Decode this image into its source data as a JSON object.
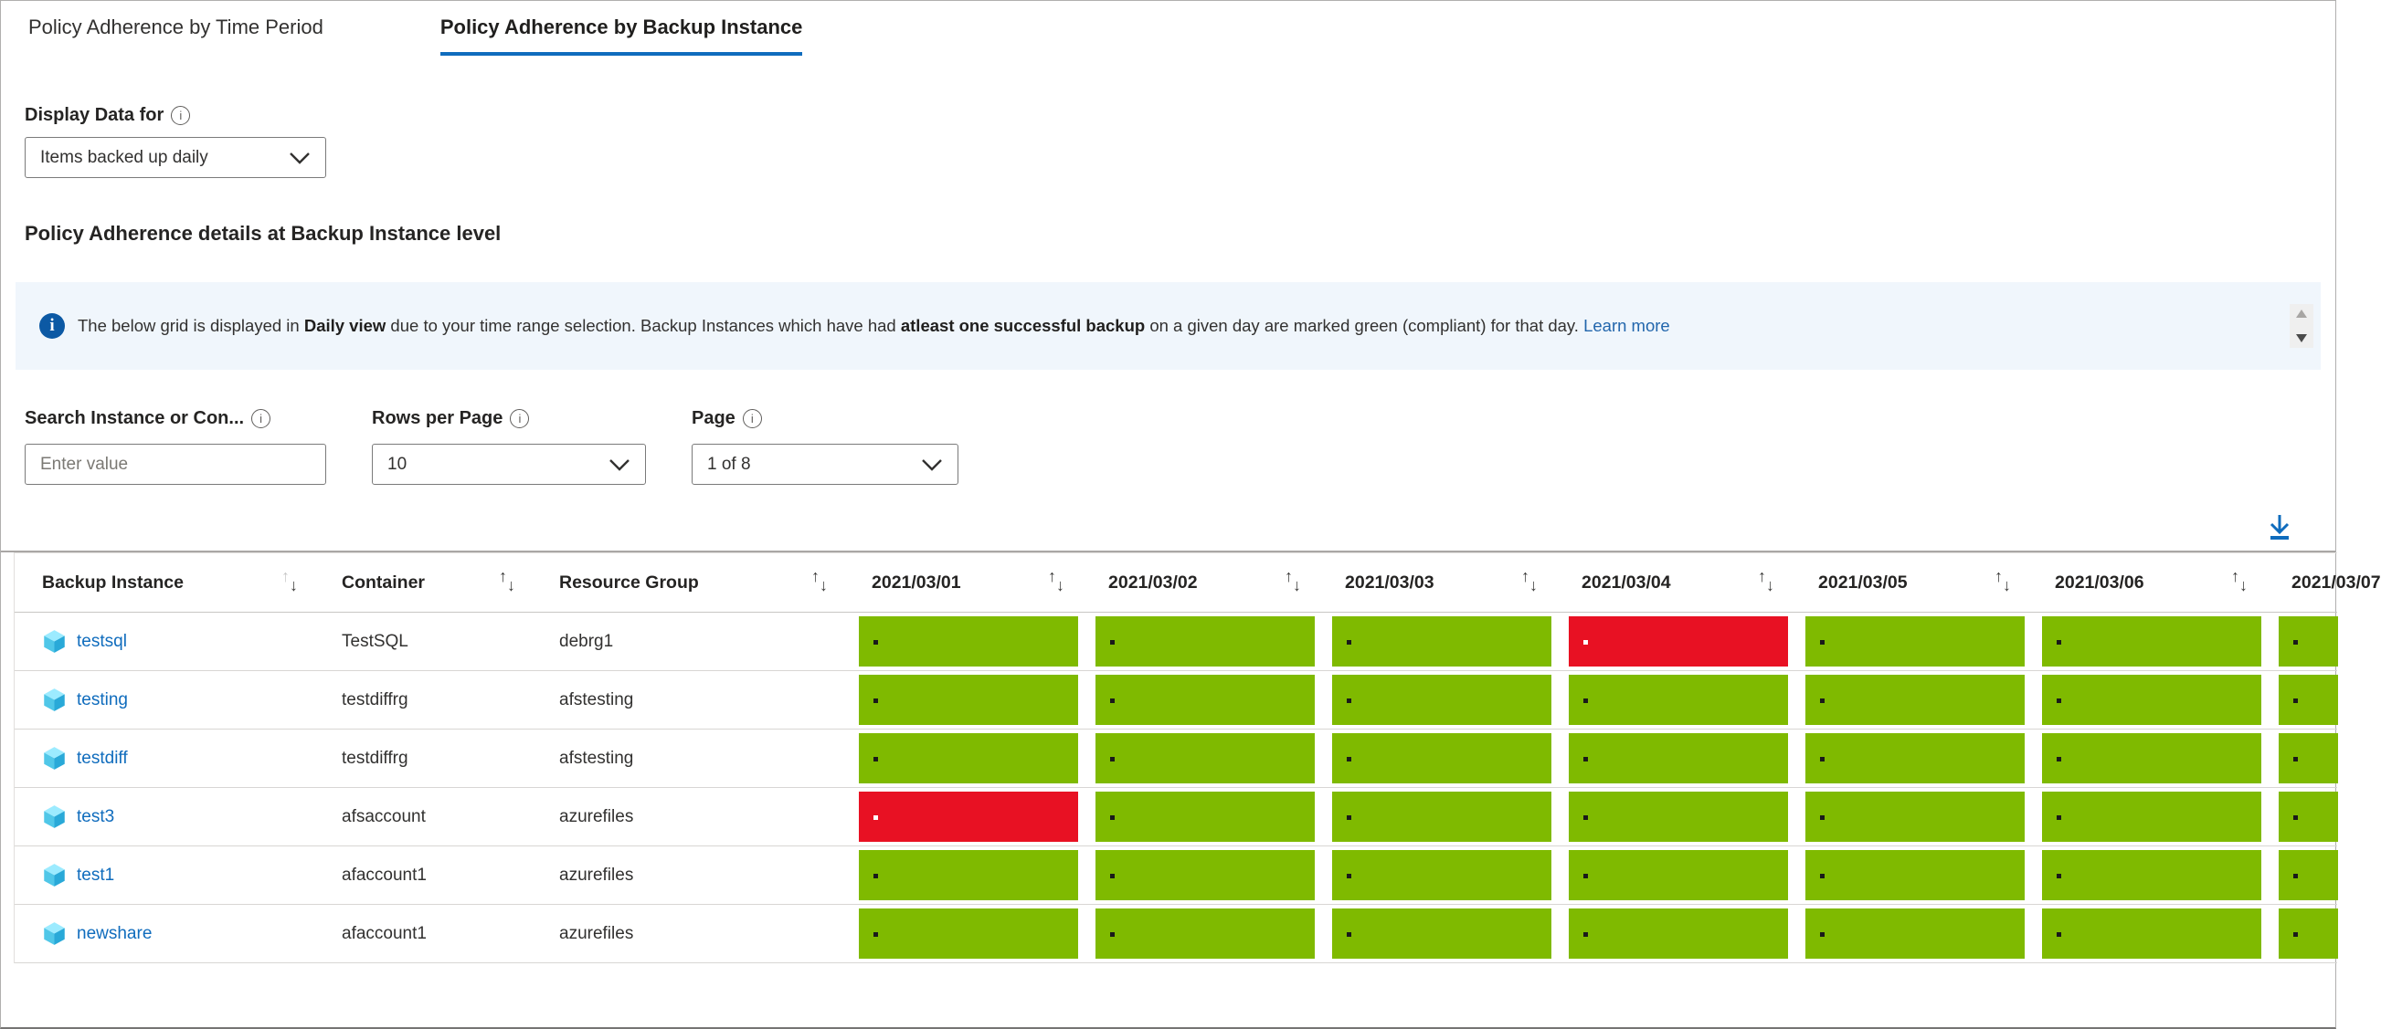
{
  "tabs": [
    {
      "label": "Policy Adherence by Time Period",
      "active": false
    },
    {
      "label": "Policy Adherence by Backup Instance",
      "active": true
    }
  ],
  "display_data_for": {
    "label": "Display Data for",
    "value": "Items backed up daily"
  },
  "section_heading": "Policy Adherence details at Backup Instance level",
  "banner": {
    "segments": [
      {
        "text": "The below grid is displayed in ",
        "bold": false
      },
      {
        "text": "Daily view",
        "bold": true
      },
      {
        "text": " due to your time range selection. Backup Instances which have had ",
        "bold": false
      },
      {
        "text": "atleast one successful backup",
        "bold": true
      },
      {
        "text": " on a given day are marked green (compliant) for that day. ",
        "bold": false
      }
    ],
    "link_label": "Learn more"
  },
  "filters": {
    "search": {
      "label": "Search Instance or Con...",
      "placeholder": "Enter value"
    },
    "rows_per_page": {
      "label": "Rows per Page",
      "value": "10"
    },
    "page": {
      "label": "Page",
      "value": "1 of 8"
    }
  },
  "table": {
    "columns": [
      {
        "label": "Backup Instance",
        "type": "text"
      },
      {
        "label": "Container",
        "type": "text"
      },
      {
        "label": "Resource Group",
        "type": "text"
      },
      {
        "label": "2021/03/01",
        "type": "day"
      },
      {
        "label": "2021/03/02",
        "type": "day"
      },
      {
        "label": "2021/03/03",
        "type": "day"
      },
      {
        "label": "2021/03/04",
        "type": "day"
      },
      {
        "label": "2021/03/05",
        "type": "day"
      },
      {
        "label": "2021/03/06",
        "type": "day"
      },
      {
        "label": "2021/03/07",
        "type": "day",
        "clipped": true
      }
    ],
    "rows": [
      {
        "instance": "testsql",
        "container": "TestSQL",
        "resource_group": "debrg1",
        "days": [
          "compliant",
          "compliant",
          "compliant",
          "non-compliant",
          "compliant",
          "compliant",
          "compliant"
        ]
      },
      {
        "instance": "testing",
        "container": "testdiffrg",
        "resource_group": "afstesting",
        "days": [
          "compliant",
          "compliant",
          "compliant",
          "compliant",
          "compliant",
          "compliant",
          "compliant"
        ]
      },
      {
        "instance": "testdiff",
        "container": "testdiffrg",
        "resource_group": "afstesting",
        "days": [
          "compliant",
          "compliant",
          "compliant",
          "compliant",
          "compliant",
          "compliant",
          "compliant"
        ]
      },
      {
        "instance": "test3",
        "container": "afsaccount",
        "resource_group": "azurefiles",
        "days": [
          "non-compliant",
          "compliant",
          "compliant",
          "compliant",
          "compliant",
          "compliant",
          "compliant"
        ]
      },
      {
        "instance": "test1",
        "container": "afaccount1",
        "resource_group": "azurefiles",
        "days": [
          "compliant",
          "compliant",
          "compliant",
          "compliant",
          "compliant",
          "compliant",
          "compliant"
        ]
      },
      {
        "instance": "newshare",
        "container": "afaccount1",
        "resource_group": "azurefiles",
        "days": [
          "compliant",
          "compliant",
          "compliant",
          "compliant",
          "compliant",
          "compliant",
          "compliant"
        ]
      }
    ]
  },
  "colors": {
    "compliant": "#7fba00",
    "non_compliant": "#e81123",
    "accent": "#0f6cbd",
    "dot_on_green": "#1a1a1a",
    "dot_on_red": "#ffffff"
  },
  "icons": {
    "info": "i",
    "sort_up": "↑",
    "sort_down": "↓"
  }
}
